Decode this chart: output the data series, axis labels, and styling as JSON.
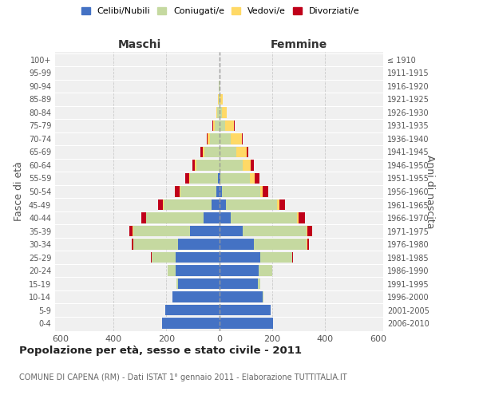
{
  "age_groups": [
    "0-4",
    "5-9",
    "10-14",
    "15-19",
    "20-24",
    "25-29",
    "30-34",
    "35-39",
    "40-44",
    "45-49",
    "50-54",
    "55-59",
    "60-64",
    "65-69",
    "70-74",
    "75-79",
    "80-84",
    "85-89",
    "90-94",
    "95-99",
    "100+"
  ],
  "birth_years": [
    "2006-2010",
    "2001-2005",
    "1996-2000",
    "1991-1995",
    "1986-1990",
    "1981-1985",
    "1976-1980",
    "1971-1975",
    "1966-1970",
    "1961-1965",
    "1956-1960",
    "1951-1955",
    "1946-1950",
    "1941-1945",
    "1936-1940",
    "1931-1935",
    "1926-1930",
    "1921-1925",
    "1916-1920",
    "1911-1915",
    "≤ 1910"
  ],
  "maschi": {
    "celibi": [
      215,
      205,
      175,
      155,
      165,
      165,
      155,
      110,
      60,
      30,
      10,
      5,
      0,
      0,
      0,
      0,
      0,
      0,
      0,
      0,
      0
    ],
    "coniugati": [
      0,
      0,
      0,
      5,
      30,
      90,
      170,
      215,
      215,
      180,
      135,
      105,
      85,
      55,
      35,
      18,
      8,
      3,
      1,
      0,
      0
    ],
    "vedovi": [
      0,
      0,
      0,
      0,
      0,
      0,
      0,
      1,
      1,
      2,
      3,
      4,
      6,
      8,
      8,
      5,
      2,
      1,
      0,
      0,
      0
    ],
    "divorziati": [
      0,
      0,
      0,
      0,
      0,
      2,
      5,
      12,
      18,
      18,
      20,
      15,
      10,
      8,
      5,
      2,
      0,
      0,
      0,
      0,
      0
    ]
  },
  "femmine": {
    "nubili": [
      205,
      195,
      165,
      145,
      150,
      155,
      130,
      90,
      45,
      25,
      10,
      5,
      0,
      0,
      0,
      0,
      0,
      0,
      0,
      0,
      0
    ],
    "coniugate": [
      0,
      0,
      1,
      10,
      50,
      120,
      200,
      240,
      250,
      195,
      145,
      110,
      90,
      65,
      45,
      22,
      10,
      4,
      1,
      0,
      0
    ],
    "vedove": [
      0,
      0,
      0,
      0,
      0,
      1,
      2,
      3,
      5,
      8,
      10,
      18,
      28,
      38,
      40,
      35,
      20,
      10,
      2,
      1,
      0
    ],
    "divorziate": [
      0,
      0,
      0,
      0,
      0,
      2,
      8,
      18,
      25,
      20,
      20,
      18,
      12,
      8,
      5,
      2,
      0,
      0,
      0,
      0,
      0
    ]
  },
  "colors": {
    "celibi_nubili": "#4472C4",
    "coniugati": "#C5D9A0",
    "vedovi": "#FFD966",
    "divorziati": "#C0001A"
  },
  "xlim": 620,
  "title": "Popolazione per età, sesso e stato civile - 2011",
  "subtitle": "COMUNE DI CAPENA (RM) - Dati ISTAT 1° gennaio 2011 - Elaborazione TUTTITALIA.IT",
  "ylabel_left": "Fasce di età",
  "ylabel_right": "Anni di nascita",
  "xlabel_maschi": "Maschi",
  "xlabel_femmine": "Femmine",
  "legend_labels": [
    "Celibi/Nubili",
    "Coniugati/e",
    "Vedovi/e",
    "Divorziati/e"
  ],
  "bg_color": "#ffffff",
  "plot_bg_color": "#f0f0f0"
}
